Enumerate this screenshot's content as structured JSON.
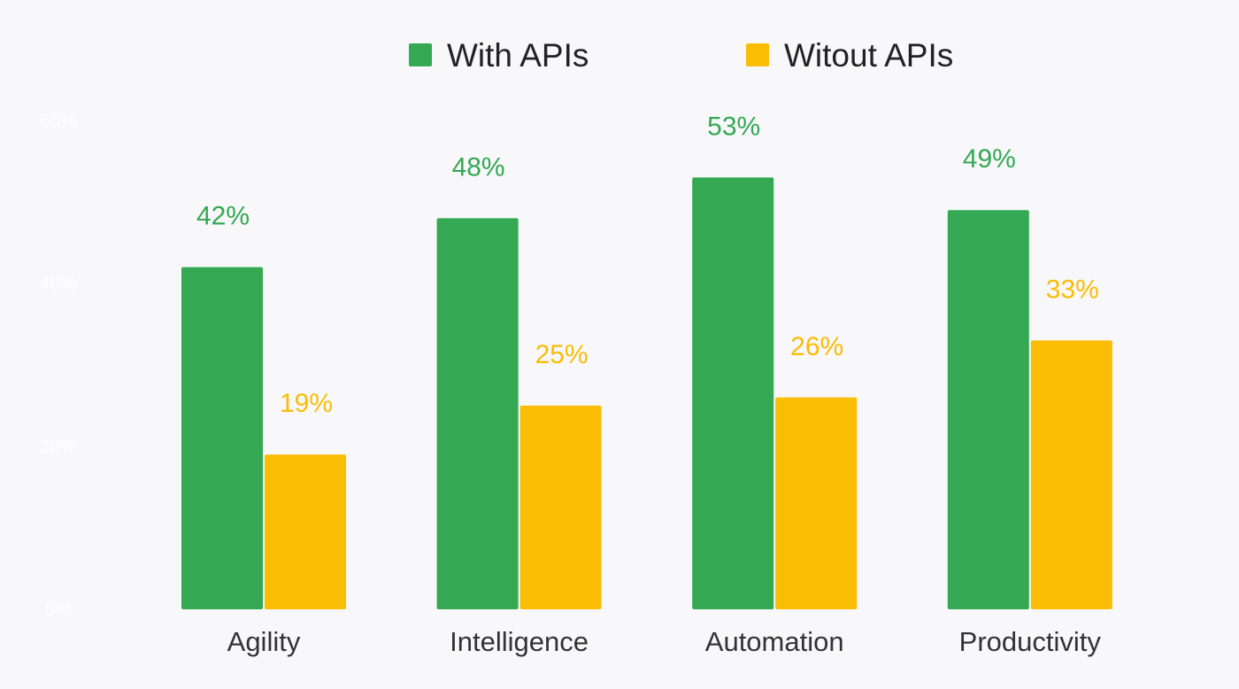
{
  "chart_data": {
    "type": "bar",
    "title": "",
    "xlabel": "",
    "ylabel": "",
    "categories": [
      "Agility",
      "Intelligence",
      "Automation",
      "Productivity"
    ],
    "series": [
      {
        "name": "With APIs",
        "color": "#34a853",
        "values": [
          42,
          48,
          53,
          49
        ],
        "labels": [
          "42%",
          "48%",
          "53%",
          "49%"
        ]
      },
      {
        "name": "Witout APIs",
        "color": "#fbbc04",
        "values": [
          19,
          25,
          26,
          33
        ],
        "labels": [
          "19%",
          "25%",
          "26%",
          "33%"
        ]
      }
    ],
    "ylim": [
      0,
      60
    ],
    "yticks": [
      0,
      20,
      40,
      60
    ],
    "ytick_labels": [
      "0%",
      "20%",
      "40%",
      "60%"
    ],
    "grid": false,
    "legend_position": "top"
  }
}
